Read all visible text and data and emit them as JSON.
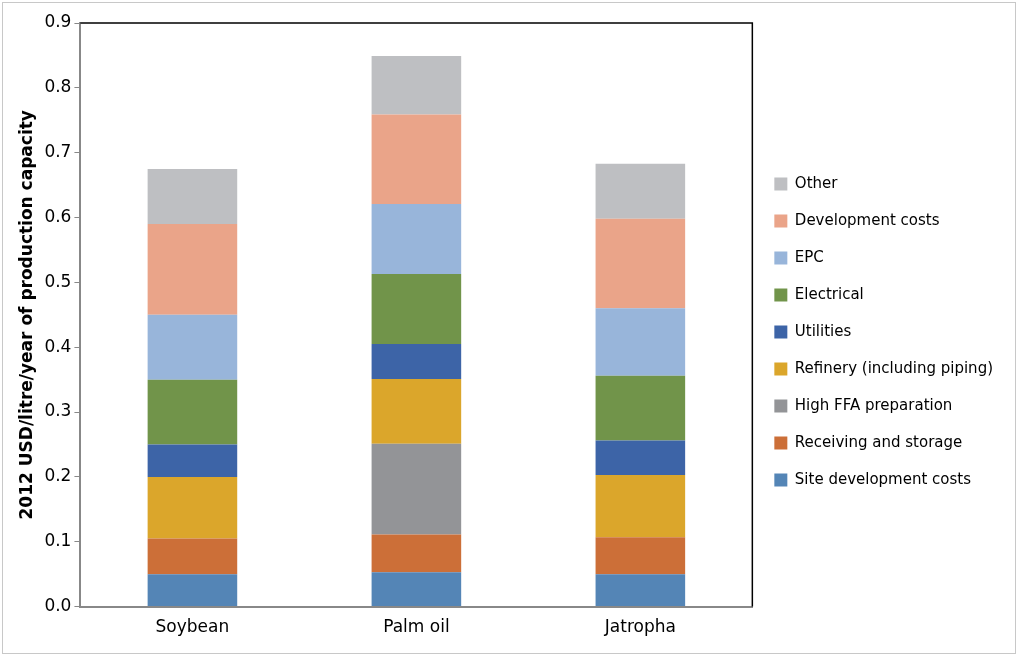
{
  "chart_data": {
    "type": "bar",
    "stacked": true,
    "ylabel": "2012 USD/litre/year of production capacity",
    "categories": [
      "Soybean",
      "Palm oil",
      "Jatropha"
    ],
    "ylim": [
      0,
      0.9
    ],
    "yticks": [
      {
        "value": 0,
        "label": "0.0"
      },
      0.1,
      0.2,
      0.3,
      0.4,
      0.5,
      0.6,
      0.7,
      0.8,
      0.9
    ],
    "legend": "right",
    "grid": false,
    "series": [
      {
        "name": "Site development costs",
        "color": "#5485b6",
        "values": [
          0.05,
          0.053,
          0.05
        ]
      },
      {
        "name": "Receiving and storage",
        "color": "#cc6f38",
        "values": [
          0.055,
          0.058,
          0.057
        ]
      },
      {
        "name": "High FFA preparation",
        "color": "#939497",
        "values": [
          0,
          0.14,
          0
        ]
      },
      {
        "name": "Refinery (including piping)",
        "color": "#dba62b",
        "values": [
          0.095,
          0.1,
          0.096
        ]
      },
      {
        "name": "Utilities",
        "color": "#3d64a7",
        "values": [
          0.05,
          0.054,
          0.053
        ]
      },
      {
        "name": "Electrical",
        "color": "#71944a",
        "values": [
          0.1,
          0.108,
          0.1
        ]
      },
      {
        "name": "EPC",
        "color": "#98b5da",
        "values": [
          0.1,
          0.108,
          0.104
        ]
      },
      {
        "name": "Development costs",
        "color": "#eaa489",
        "values": [
          0.14,
          0.138,
          0.138
        ]
      },
      {
        "name": "Other",
        "color": "#bebfc2",
        "values": [
          0.085,
          0.09,
          0.085
        ]
      }
    ]
  }
}
